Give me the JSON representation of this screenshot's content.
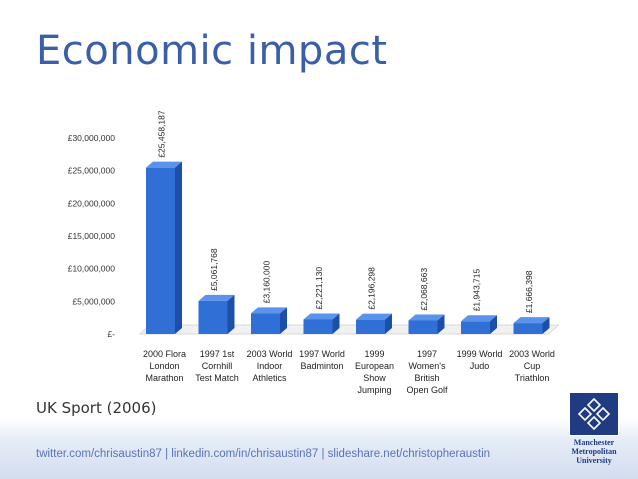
{
  "slide": {
    "title": "Economic impact",
    "source": "UK Sport (2006)",
    "footer": "twitter.com/chrisaustin87  |  linkedin.com/in/chrisaustin87  |  slideshare.net/christopheraustin",
    "logo_lines": [
      "Manchester",
      "Metropolitan",
      "University"
    ],
    "logo_icon": "mmu-crest-icon"
  },
  "chart_data": {
    "type": "bar",
    "categories": [
      [
        "2000 Flora",
        "London",
        "Marathon"
      ],
      [
        "1997 1st",
        "Cornhill",
        "Test Match"
      ],
      [
        "2003 World",
        "Indoor",
        "Athletics"
      ],
      [
        "1997 World",
        "Badminton"
      ],
      [
        "1999",
        "European",
        "Show",
        "Jumping"
      ],
      [
        "1997",
        "Women's",
        "British",
        "Open Golf"
      ],
      [
        "1999 World",
        "Judo"
      ],
      [
        "2003 World",
        "Cup",
        "Triathlon"
      ]
    ],
    "values": [
      25458187,
      5061768,
      3160000,
      2221130,
      2196298,
      2068663,
      1943715,
      1666398
    ],
    "data_labels": [
      "£25,458,187",
      "£5,061,768",
      "£3,160,000",
      "£2,221,130",
      "£2,196,298",
      "£2,068,663",
      "£1,943,715",
      "£1,666,398"
    ],
    "y_ticks": [
      0,
      5000000,
      10000000,
      15000000,
      20000000,
      25000000,
      30000000
    ],
    "y_tick_labels": [
      "£-",
      "£5,000,000",
      "£10,000,000",
      "£15,000,000",
      "£20,000,000",
      "£25,000,000",
      "£30,000,000"
    ],
    "ylim": [
      0,
      30000000
    ],
    "title": "",
    "xlabel": "",
    "ylabel": "",
    "grid": false,
    "bar_color": "#2f6fd6"
  }
}
